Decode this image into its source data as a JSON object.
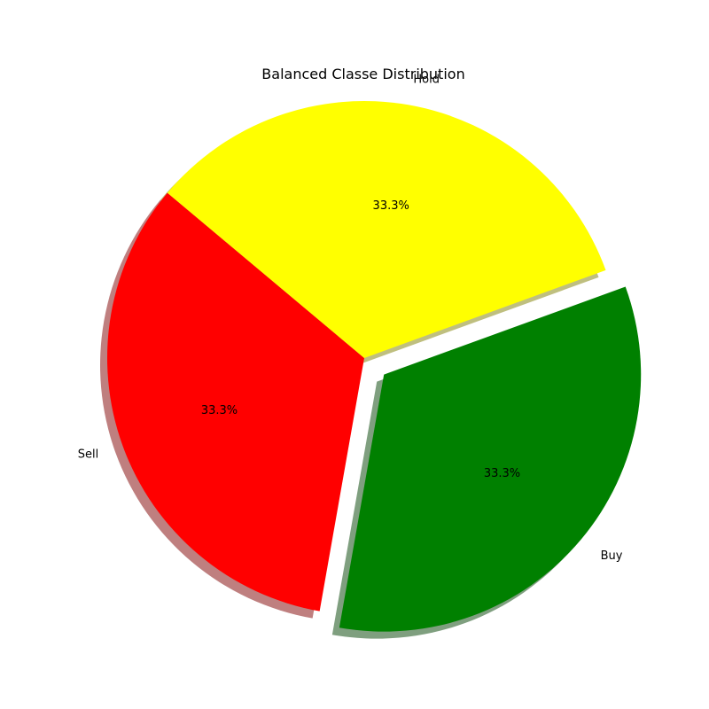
{
  "chart_data": {
    "type": "pie",
    "title": "Balanced Classe Distribution",
    "slices": [
      {
        "label": "Sell",
        "value": 33.33,
        "pct_label": "33.3%",
        "color": "#ff0000",
        "exploded": false
      },
      {
        "label": "Buy",
        "value": 33.33,
        "pct_label": "33.3%",
        "color": "#008000",
        "exploded": true
      },
      {
        "label": "Hold",
        "value": 33.33,
        "pct_label": "33.3%",
        "color": "#ffff00",
        "exploded": false
      }
    ],
    "shadow": true,
    "legend": "none"
  }
}
